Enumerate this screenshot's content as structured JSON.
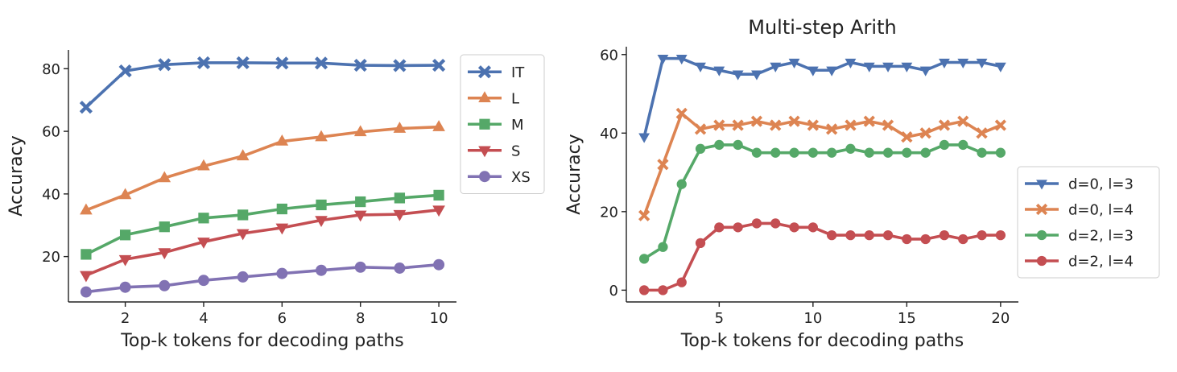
{
  "chart_data": [
    {
      "type": "line",
      "title": "",
      "xlabel": "Top-k tokens for decoding paths",
      "ylabel": "Accuracy",
      "x": [
        1,
        2,
        3,
        4,
        5,
        6,
        7,
        8,
        9,
        10
      ],
      "xticks": [
        2,
        4,
        6,
        8,
        10
      ],
      "yticks": [
        20,
        40,
        60,
        80
      ],
      "xlim": [
        0.55,
        10.45
      ],
      "ylim": [
        5.5,
        86
      ],
      "grid": false,
      "legend_position": "right",
      "series": [
        {
          "name": "IT",
          "color": "#4c72b0",
          "marker": "x-cross",
          "values": [
            67.7,
            79.3,
            81.3,
            81.9,
            81.9,
            81.8,
            81.8,
            81.1,
            81.0,
            81.1
          ]
        },
        {
          "name": "L",
          "color": "#dd8452",
          "marker": "triangle-up",
          "values": [
            34.8,
            39.7,
            45.1,
            48.9,
            52.1,
            56.8,
            58.2,
            59.8,
            60.9,
            61.4
          ]
        },
        {
          "name": "M",
          "color": "#55a868",
          "marker": "square",
          "values": [
            20.7,
            26.9,
            29.5,
            32.3,
            33.3,
            35.2,
            36.5,
            37.5,
            38.7,
            39.6
          ]
        },
        {
          "name": "S",
          "color": "#c44e52",
          "marker": "triangle-down",
          "values": [
            14.0,
            19.1,
            21.3,
            24.7,
            27.4,
            29.2,
            31.6,
            33.3,
            33.5,
            34.9
          ]
        },
        {
          "name": "XS",
          "color": "#8172b3",
          "marker": "circle",
          "values": [
            8.7,
            10.2,
            10.7,
            12.4,
            13.5,
            14.6,
            15.6,
            16.6,
            16.3,
            17.4
          ]
        }
      ]
    },
    {
      "type": "line",
      "title": "Multi-step Arith",
      "xlabel": "Top-k tokens for decoding paths",
      "ylabel": "Accuracy",
      "x": [
        1,
        2,
        3,
        4,
        5,
        6,
        7,
        8,
        9,
        10,
        11,
        12,
        13,
        14,
        15,
        16,
        17,
        18,
        19,
        20
      ],
      "xticks": [
        5,
        10,
        15,
        20
      ],
      "yticks": [
        0,
        20,
        40,
        60
      ],
      "xlim": [
        0.05,
        20.95
      ],
      "ylim": [
        -3,
        62
      ],
      "grid": false,
      "legend_position": "right",
      "series": [
        {
          "name": "d=0, l=3",
          "color": "#4c72b0",
          "marker": "triangle-down",
          "values": [
            39,
            59,
            59,
            57,
            56,
            55,
            55,
            57,
            58,
            56,
            56,
            58,
            57,
            57,
            57,
            56,
            58,
            58,
            58,
            57
          ]
        },
        {
          "name": "d=0, l=4",
          "color": "#dd8452",
          "marker": "x-cross",
          "values": [
            19,
            32,
            45,
            41,
            42,
            42,
            43,
            42,
            43,
            42,
            41,
            42,
            43,
            42,
            39,
            40,
            42,
            43,
            40,
            42
          ]
        },
        {
          "name": "d=2, l=3",
          "color": "#55a868",
          "marker": "circle",
          "values": [
            8,
            11,
            27,
            36,
            37,
            37,
            35,
            35,
            35,
            35,
            35,
            36,
            35,
            35,
            35,
            35,
            37,
            37,
            35,
            35
          ]
        },
        {
          "name": "d=2, l=4",
          "color": "#c44e52",
          "marker": "circle",
          "values": [
            0,
            0,
            2,
            12,
            16,
            16,
            17,
            17,
            16,
            16,
            14,
            14,
            14,
            14,
            13,
            13,
            14,
            13,
            14,
            14
          ]
        }
      ]
    }
  ]
}
